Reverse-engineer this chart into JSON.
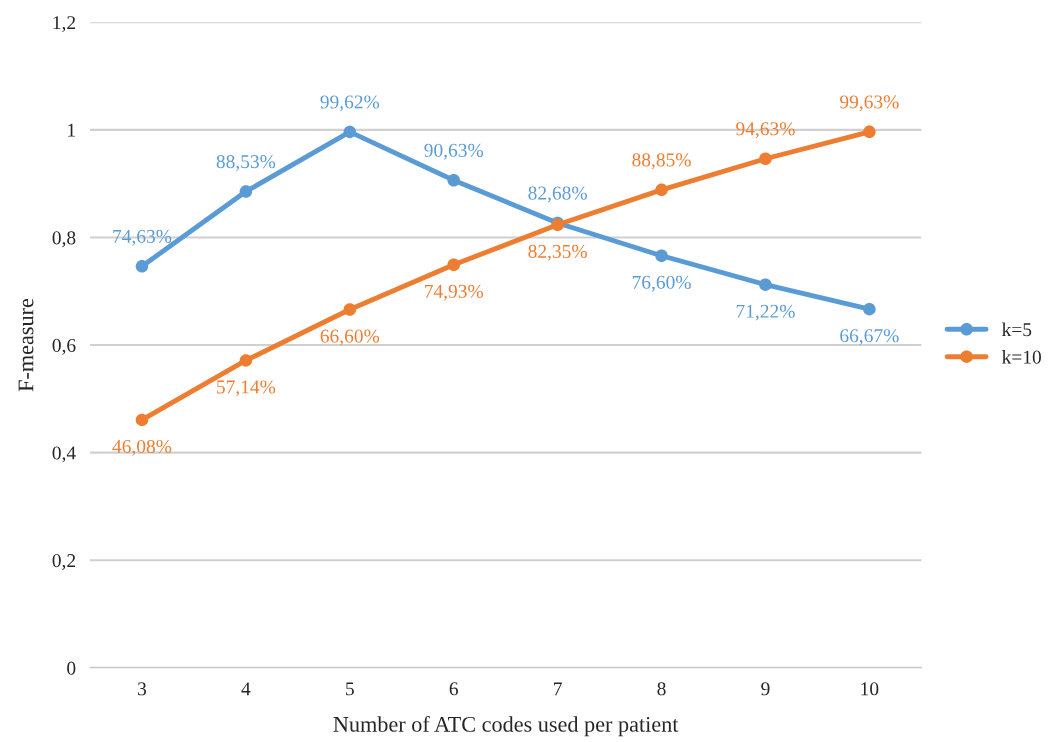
{
  "chart_data": {
    "type": "line",
    "xlabel": "Number of ATC codes used per patient",
    "ylabel": "F-measure",
    "categories": [
      "3",
      "4",
      "5",
      "6",
      "7",
      "8",
      "9",
      "10"
    ],
    "series": [
      {
        "name": "k=5",
        "color": "#5b9bd5",
        "values": [
          0.7463,
          0.8853,
          0.9962,
          0.9063,
          0.8268,
          0.766,
          0.7122,
          0.6667
        ],
        "value_labels": [
          "74,63%",
          "88,53%",
          "99,62%",
          "90,63%",
          "82,68%",
          "76,60%",
          "71,22%",
          "66,67%"
        ]
      },
      {
        "name": "k=10",
        "color": "#ed7d31",
        "values": [
          0.4608,
          0.5714,
          0.666,
          0.7493,
          0.8235,
          0.8885,
          0.9463,
          0.9963
        ],
        "value_labels": [
          "46,08%",
          "57,14%",
          "66,60%",
          "74,93%",
          "82,35%",
          "88,85%",
          "94,63%",
          "99,63%"
        ]
      }
    ],
    "ylim": [
      0,
      1.2
    ],
    "yticks": [
      0,
      {
        "value": 0.2,
        "label": "0,2"
      },
      {
        "value": 0.4,
        "label": "0,4"
      },
      {
        "value": 0.6,
        "label": "0,6"
      },
      {
        "value": 0.8,
        "label": "0,8"
      },
      1,
      {
        "value": 1.2,
        "label": "1,2"
      }
    ],
    "grid": "y",
    "legend": "right",
    "marker": "circle",
    "line_style": "solid"
  }
}
